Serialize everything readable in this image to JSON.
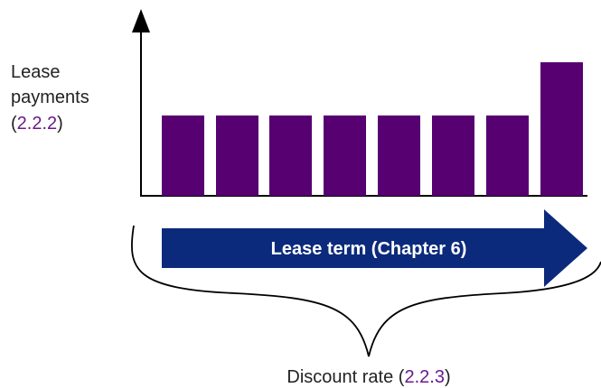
{
  "y_label": {
    "lines": [
      "Lease",
      "payments"
    ],
    "ref_open": "(",
    "ref": "2.2.2",
    "ref_close": ")"
  },
  "arrow_label": "Lease term (Chapter 6)",
  "brace_label": {
    "text": "Discount rate (",
    "ref": "2.2.3",
    "close": ")"
  }
}
